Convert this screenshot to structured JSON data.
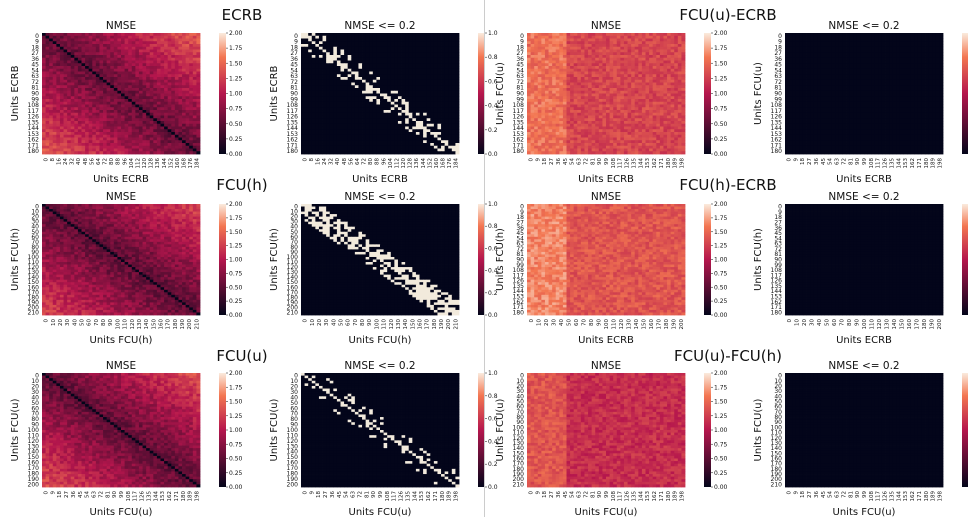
{
  "figure": {
    "panel_titles": [
      "ECRB",
      "FCU(u)-ECRB",
      "FCU(h)",
      "FCU(h)-ECRB",
      "FCU(u)",
      "FCU(u)-FCU(h)"
    ],
    "subplot_titles": {
      "nmse": "NMSE",
      "threshold": "NMSE <= 0.2"
    },
    "colorbars": {
      "nmse": [
        "2.00",
        "1.75",
        "1.50",
        "1.25",
        "1.00",
        "0.75",
        "0.50",
        "0.25",
        "0.00"
      ],
      "threshold": [
        "1.0",
        "0.8",
        "0.6",
        "0.4",
        "0.2",
        "0.0"
      ]
    },
    "colors": {
      "low": "#03051a",
      "mid": "#b5164d",
      "high": "#f37651",
      "top": "#faebdd",
      "threshold_on": "#f2eadc",
      "threshold_off": "#03051a"
    }
  },
  "chart_data": [
    {
      "type": "heatmap",
      "title": "ECRB",
      "subtitle": "NMSE",
      "cmap": "rocket",
      "xlabel": "Units ECRB",
      "ylabel": "Units ECRB",
      "xticks": [
        "0",
        "8",
        "16",
        "24",
        "32",
        "40",
        "48",
        "56",
        "64",
        "72",
        "80",
        "88",
        "96",
        "104",
        "112",
        "120",
        "128",
        "136",
        "144",
        "152",
        "160",
        "168",
        "176",
        "184"
      ],
      "yticks": [
        "0",
        "9",
        "18",
        "27",
        "36",
        "45",
        "54",
        "63",
        "72",
        "81",
        "90",
        "99",
        "108",
        "117",
        "126",
        "135",
        "144",
        "153",
        "162",
        "171",
        "180"
      ],
      "zlim": [
        0,
        2.0
      ],
      "mean_offdiag": 1.2,
      "diagonal": 0.0
    },
    {
      "type": "heatmap",
      "title": "ECRB",
      "subtitle": "NMSE <= 0.2",
      "cmap": "rocket",
      "xlabel": "Units ECRB",
      "ylabel": "Units ECRB",
      "xticks": [
        "0",
        "8",
        "16",
        "24",
        "32",
        "40",
        "48",
        "56",
        "64",
        "72",
        "80",
        "88",
        "96",
        "104",
        "112",
        "120",
        "128",
        "136",
        "144",
        "152",
        "160",
        "168",
        "176",
        "184"
      ],
      "yticks": [
        "0",
        "9",
        "18",
        "27",
        "36",
        "45",
        "54",
        "63",
        "72",
        "81",
        "90",
        "99",
        "108",
        "117",
        "126",
        "135",
        "144",
        "153",
        "162",
        "171",
        "180"
      ],
      "zlim": [
        0,
        1.0
      ],
      "fraction_on": 0.06
    },
    {
      "type": "heatmap",
      "title": "FCU(u)-ECRB",
      "subtitle": "NMSE",
      "cmap": "rocket",
      "xlabel": "Units ECRB",
      "ylabel": "Units FCU(u)",
      "xticks": [
        "0",
        "9",
        "18",
        "27",
        "36",
        "45",
        "54",
        "63",
        "72",
        "81",
        "90",
        "99",
        "108",
        "117",
        "126",
        "135",
        "144",
        "153",
        "162",
        "171",
        "180",
        "189",
        "198"
      ],
      "yticks": [
        "0",
        "9",
        "18",
        "27",
        "36",
        "45",
        "54",
        "63",
        "72",
        "81",
        "90",
        "99",
        "108",
        "117",
        "126",
        "135",
        "144",
        "153",
        "162",
        "171",
        "180"
      ],
      "zlim": [
        0,
        2.0
      ],
      "mean_offdiag": 1.4
    },
    {
      "type": "heatmap",
      "title": "FCU(u)-ECRB",
      "subtitle": "NMSE <= 0.2",
      "cmap": "rocket",
      "xlabel": "Units ECRB",
      "ylabel": "Units FCU(u)",
      "xticks": [
        "0",
        "9",
        "18",
        "27",
        "36",
        "45",
        "54",
        "63",
        "72",
        "81",
        "90",
        "99",
        "108",
        "117",
        "126",
        "135",
        "144",
        "153",
        "162",
        "171",
        "180",
        "189",
        "198"
      ],
      "yticks": [
        "0",
        "9",
        "18",
        "27",
        "36",
        "45",
        "54",
        "63",
        "72",
        "81",
        "90",
        "99",
        "108",
        "117",
        "126",
        "135",
        "144",
        "153",
        "162",
        "171",
        "180"
      ],
      "zlim": [
        0,
        1.0
      ],
      "fraction_on": 0.0
    },
    {
      "type": "heatmap",
      "title": "FCU(h)",
      "subtitle": "NMSE",
      "cmap": "rocket",
      "xlabel": "Units FCU(h)",
      "ylabel": "Units FCU(h)",
      "xticks": [
        "0",
        "10",
        "20",
        "30",
        "40",
        "50",
        "60",
        "70",
        "80",
        "90",
        "100",
        "110",
        "120",
        "130",
        "140",
        "150",
        "160",
        "170",
        "180",
        "190",
        "200",
        "210"
      ],
      "yticks": [
        "0",
        "10",
        "20",
        "30",
        "40",
        "50",
        "60",
        "70",
        "80",
        "90",
        "100",
        "110",
        "120",
        "130",
        "140",
        "150",
        "160",
        "170",
        "180",
        "190",
        "200",
        "210"
      ],
      "zlim": [
        0,
        2.0
      ],
      "mean_offdiag": 1.1,
      "diagonal": 0.0
    },
    {
      "type": "heatmap",
      "title": "FCU(h)",
      "subtitle": "NMSE <= 0.2",
      "cmap": "rocket",
      "xlabel": "Units FCU(h)",
      "ylabel": "Units FCU(h)",
      "xticks": [
        "0",
        "10",
        "20",
        "30",
        "40",
        "50",
        "60",
        "70",
        "80",
        "90",
        "100",
        "110",
        "120",
        "130",
        "140",
        "150",
        "160",
        "170",
        "180",
        "190",
        "200",
        "210"
      ],
      "yticks": [
        "0",
        "10",
        "20",
        "30",
        "40",
        "50",
        "60",
        "70",
        "80",
        "90",
        "100",
        "110",
        "120",
        "130",
        "140",
        "150",
        "160",
        "170",
        "180",
        "190",
        "200",
        "210"
      ],
      "zlim": [
        0,
        1.0
      ],
      "fraction_on": 0.12
    },
    {
      "type": "heatmap",
      "title": "FCU(h)-ECRB",
      "subtitle": "NMSE",
      "cmap": "rocket",
      "xlabel": "Units ECRB",
      "ylabel": "Units FCU(h)",
      "xticks": [
        "0",
        "10",
        "20",
        "30",
        "40",
        "50",
        "60",
        "70",
        "80",
        "90",
        "100",
        "110",
        "120",
        "130",
        "140",
        "150",
        "160",
        "170",
        "180",
        "190",
        "200"
      ],
      "yticks": [
        "0",
        "9",
        "18",
        "27",
        "36",
        "45",
        "54",
        "63",
        "72",
        "81",
        "90",
        "99",
        "108",
        "117",
        "126",
        "135",
        "144",
        "153",
        "162",
        "171",
        "180"
      ],
      "zlim": [
        0,
        2.0
      ],
      "mean_offdiag": 1.5
    },
    {
      "type": "heatmap",
      "title": "FCU(h)-ECRB",
      "subtitle": "NMSE <= 0.2",
      "cmap": "rocket",
      "xlabel": "Units ECRB",
      "ylabel": "Units FCU(h)",
      "xticks": [
        "0",
        "10",
        "20",
        "30",
        "40",
        "50",
        "60",
        "70",
        "80",
        "90",
        "100",
        "110",
        "120",
        "130",
        "140",
        "150",
        "160",
        "170",
        "180",
        "190",
        "200"
      ],
      "yticks": [
        "0",
        "9",
        "18",
        "27",
        "36",
        "45",
        "54",
        "63",
        "72",
        "81",
        "90",
        "99",
        "108",
        "117",
        "126",
        "135",
        "144",
        "153",
        "162",
        "171",
        "180"
      ],
      "zlim": [
        0,
        1.0
      ],
      "fraction_on": 0.0
    },
    {
      "type": "heatmap",
      "title": "FCU(u)",
      "subtitle": "NMSE",
      "cmap": "rocket",
      "xlabel": "Units FCU(u)",
      "ylabel": "Units FCU(u)",
      "xticks": [
        "0",
        "9",
        "18",
        "27",
        "36",
        "45",
        "54",
        "63",
        "72",
        "81",
        "90",
        "99",
        "108",
        "117",
        "126",
        "135",
        "144",
        "153",
        "162",
        "171",
        "180",
        "189",
        "198"
      ],
      "yticks": [
        "0",
        "10",
        "20",
        "30",
        "40",
        "50",
        "60",
        "70",
        "80",
        "90",
        "100",
        "110",
        "120",
        "130",
        "140",
        "150",
        "160",
        "170",
        "180",
        "190",
        "200"
      ],
      "zlim": [
        0,
        2.0
      ],
      "mean_offdiag": 1.15,
      "diagonal": 0.0
    },
    {
      "type": "heatmap",
      "title": "FCU(u)",
      "subtitle": "NMSE <= 0.2",
      "cmap": "rocket",
      "xlabel": "Units FCU(u)",
      "ylabel": "Units FCU(u)",
      "xticks": [
        "0",
        "9",
        "18",
        "27",
        "36",
        "45",
        "54",
        "63",
        "72",
        "81",
        "90",
        "99",
        "108",
        "117",
        "126",
        "135",
        "144",
        "153",
        "162",
        "171",
        "180",
        "189",
        "198"
      ],
      "yticks": [
        "0",
        "10",
        "20",
        "30",
        "40",
        "50",
        "60",
        "70",
        "80",
        "90",
        "100",
        "110",
        "120",
        "130",
        "140",
        "150",
        "160",
        "170",
        "180",
        "190",
        "200"
      ],
      "zlim": [
        0,
        1.0
      ],
      "fraction_on": 0.04
    },
    {
      "type": "heatmap",
      "title": "FCU(u)-FCU(h)",
      "subtitle": "NMSE",
      "cmap": "rocket",
      "xlabel": "Units FCU(u)",
      "ylabel": "Units FCU(u)",
      "xticks": [
        "0",
        "9",
        "18",
        "27",
        "36",
        "45",
        "54",
        "63",
        "72",
        "81",
        "90",
        "99",
        "108",
        "117",
        "126",
        "135",
        "144",
        "153",
        "162",
        "171",
        "180",
        "189",
        "198"
      ],
      "yticks": [
        "0",
        "10",
        "20",
        "30",
        "40",
        "50",
        "60",
        "70",
        "80",
        "90",
        "100",
        "110",
        "120",
        "130",
        "140",
        "150",
        "160",
        "170",
        "180",
        "190",
        "200",
        "210"
      ],
      "zlim": [
        0,
        2.0
      ],
      "mean_offdiag": 1.25
    },
    {
      "type": "heatmap",
      "title": "FCU(u)-FCU(h)",
      "subtitle": "NMSE <= 0.2",
      "cmap": "rocket",
      "xlabel": "Units FCU(u)",
      "ylabel": "Units FCU(u)",
      "xticks": [
        "0",
        "9",
        "18",
        "27",
        "36",
        "45",
        "54",
        "63",
        "72",
        "81",
        "90",
        "99",
        "108",
        "117",
        "126",
        "135",
        "144",
        "153",
        "162",
        "171",
        "180",
        "189",
        "198"
      ],
      "yticks": [
        "0",
        "10",
        "20",
        "30",
        "40",
        "50",
        "60",
        "70",
        "80",
        "90",
        "100",
        "110",
        "120",
        "130",
        "140",
        "150",
        "160",
        "170",
        "180",
        "190",
        "200",
        "210"
      ],
      "zlim": [
        0,
        1.0
      ],
      "fraction_on": 0.0
    }
  ]
}
